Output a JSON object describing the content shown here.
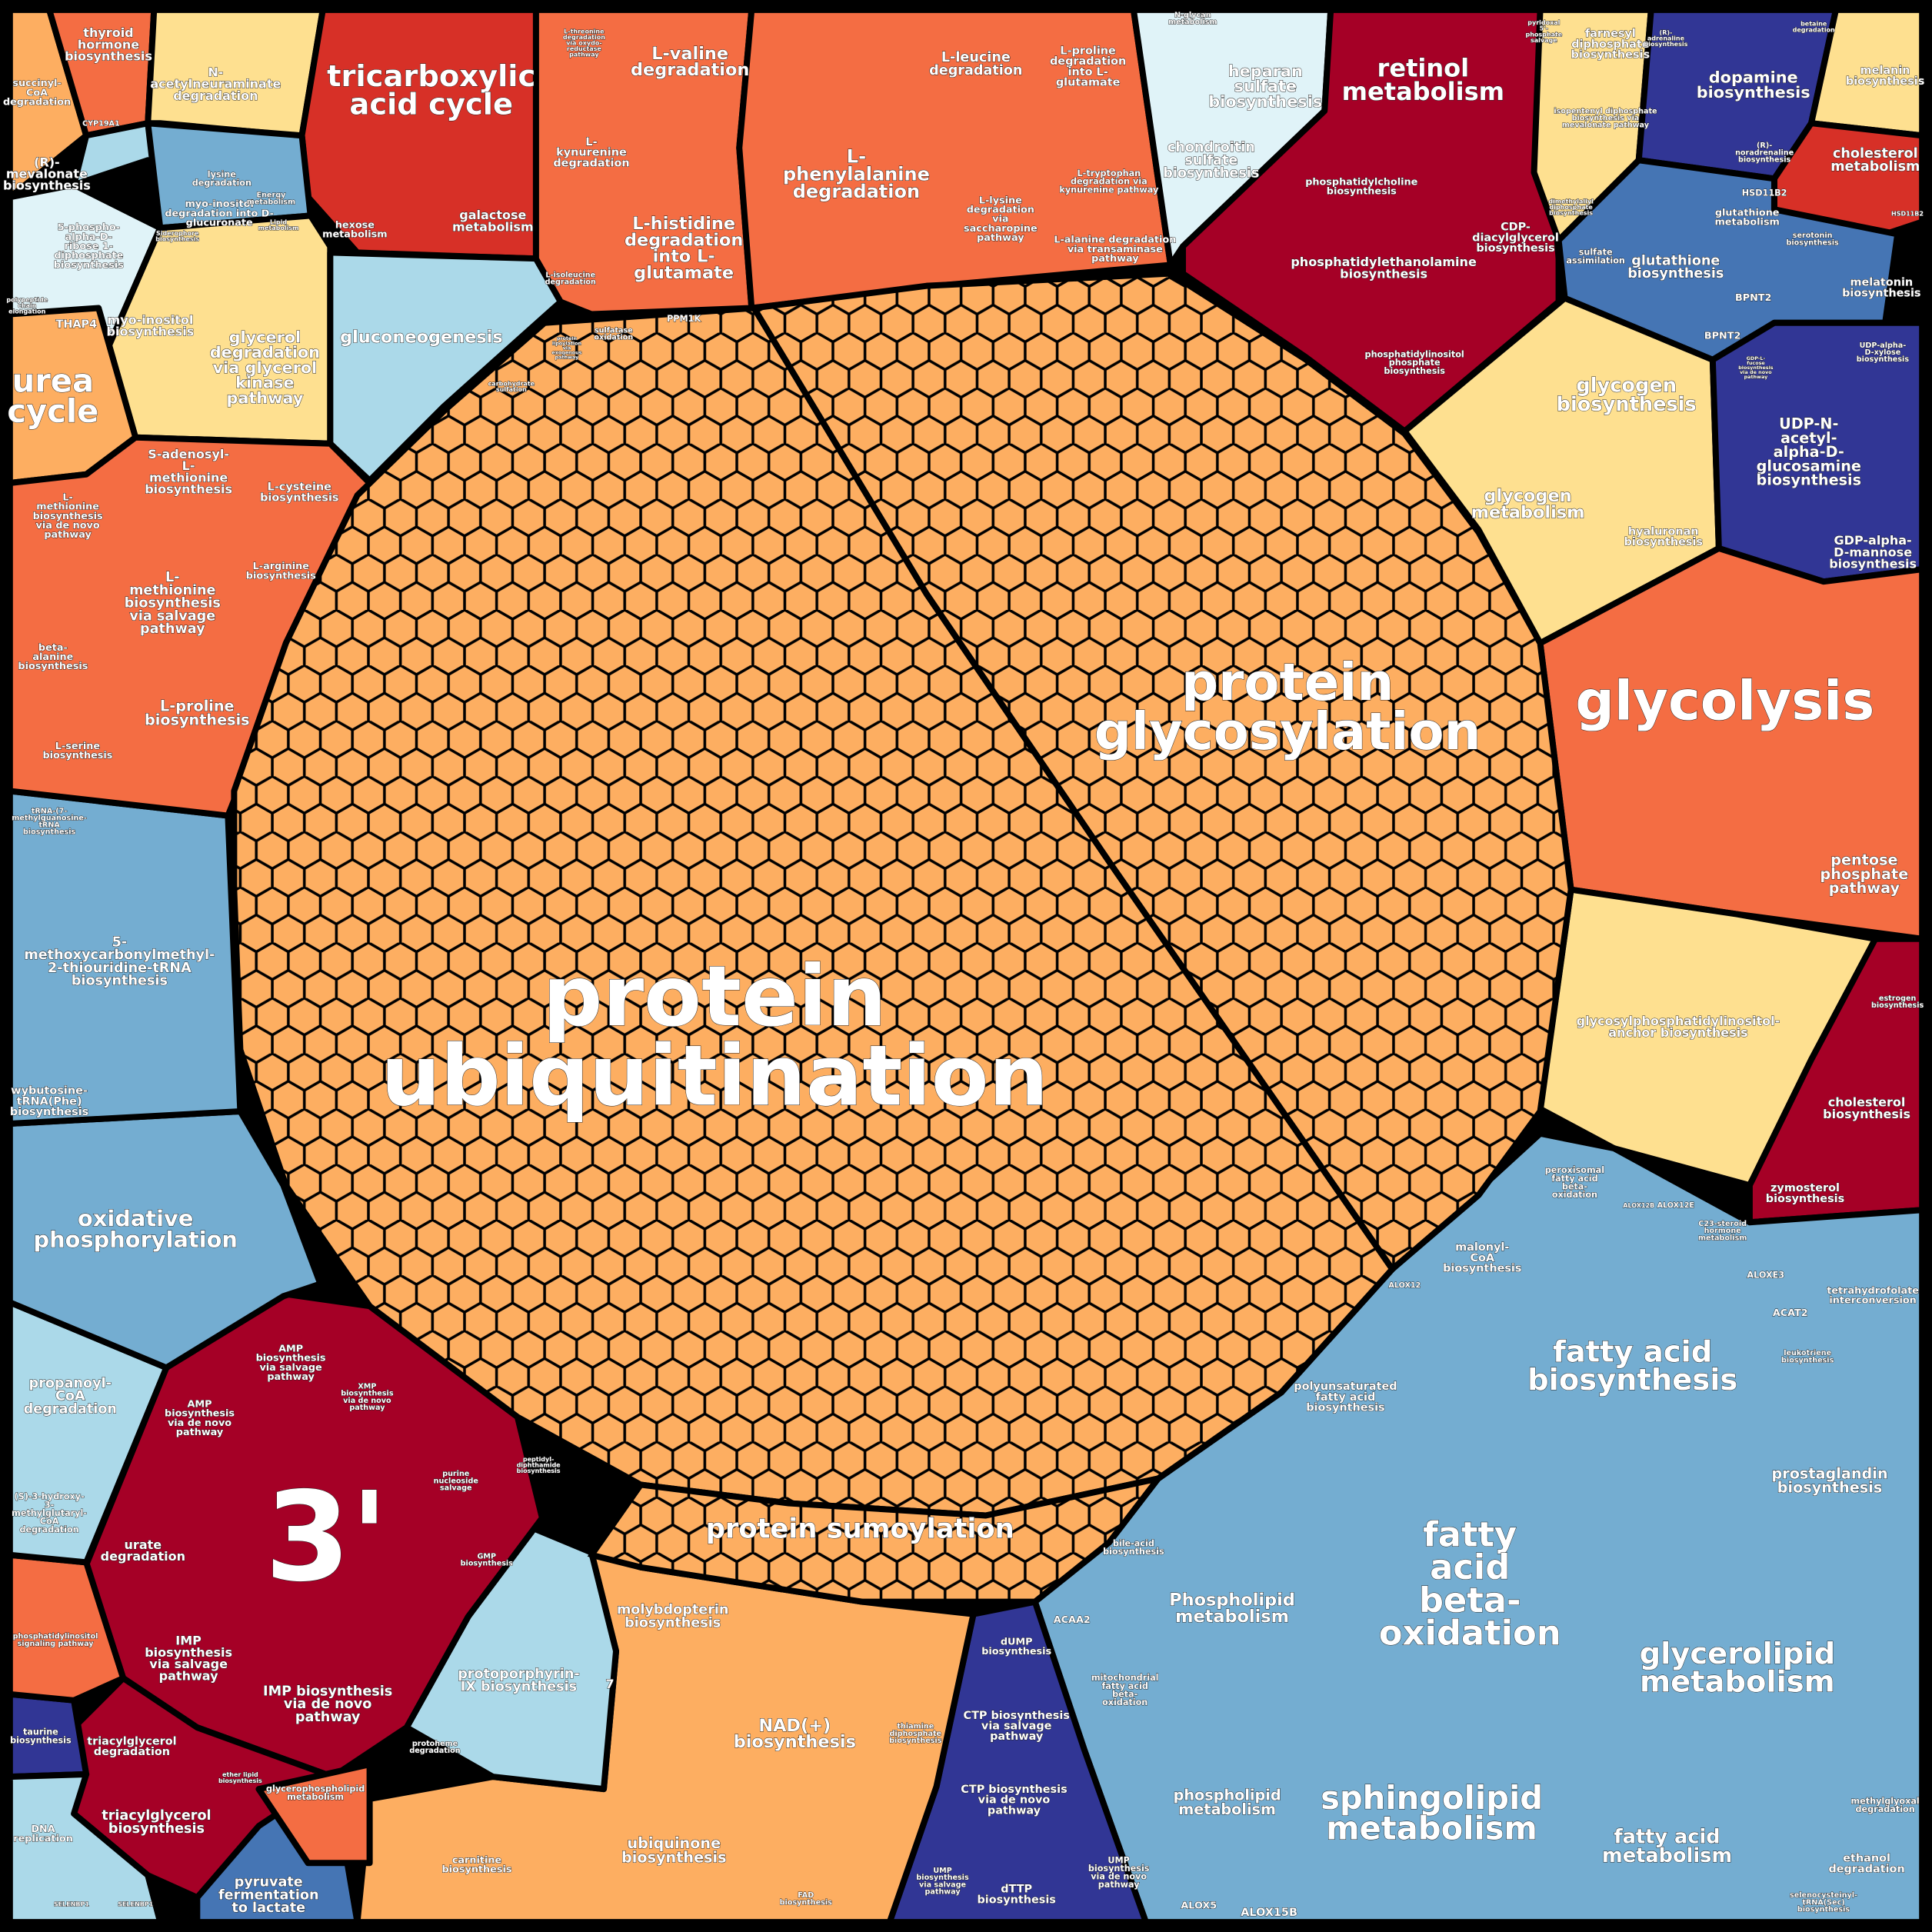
{
  "colors": {
    "orange_light": "#fdae61",
    "orange": "#f46d43",
    "red": "#d73027",
    "dark_red": "#a50026",
    "yellow": "#fee090",
    "pale_blue": "#e0f3f8",
    "light_blue": "#abd9e9",
    "mid_blue": "#74add1",
    "blue": "#4575b4",
    "navy": "#313695",
    "border": "#000000"
  },
  "labels": {
    "protein_ubiquitination": [
      "protein",
      "ubiquitination"
    ],
    "protein_glycosylation": [
      "protein",
      "glycosylation"
    ],
    "glycolysis": [
      "glycolysis"
    ],
    "three_prime": [
      "3'"
    ],
    "tca": [
      "tricarboxylic",
      "acid cycle"
    ],
    "retinol": [
      "retinol",
      "metabolism"
    ],
    "urea": [
      "urea",
      "cycle"
    ],
    "fatty_beta": [
      "fatty",
      "acid",
      "beta-",
      "oxidation"
    ],
    "fatty_bio": [
      "fatty acid",
      "biosynthesis"
    ],
    "glycerolipid": [
      "glycerolipid",
      "metabolism"
    ],
    "sphingolipid": [
      "sphingolipid",
      "metabolism"
    ],
    "protein_sumoylation": [
      "protein sumoylation"
    ],
    "oxidative": [
      "oxidative",
      "phosphorylation"
    ],
    "gluconeogenesis": [
      "gluconeogenesis"
    ],
    "glycogen_bio": [
      "glycogen",
      "biosynthesis"
    ],
    "glycogen_met": [
      "glycogen",
      "metabolism"
    ],
    "l_valine": [
      "L-valine",
      "degradation"
    ],
    "l_phenylalanine": [
      "L-",
      "phenylalanine",
      "degradation"
    ],
    "l_histidine": [
      "L-histidine",
      "degradation",
      "into L-",
      "glutamate"
    ],
    "l_leucine": [
      "L-leucine",
      "degradation"
    ],
    "l_proline_deg": [
      "L-proline",
      "degradation",
      "into L-",
      "glutamate"
    ],
    "l_kynurenine": [
      "L-",
      "kynurenine",
      "degradation"
    ],
    "l_tryptophan": [
      "L-tryptophan",
      "degradation via",
      "kynurenine pathway"
    ],
    "l_lysine": [
      "L-lysine",
      "degradation",
      "via",
      "saccharopine",
      "pathway"
    ],
    "l_alanine": [
      "L-alanine degradation",
      "via transaminase",
      "pathway"
    ],
    "l_isoleucine": [
      "L-isoleucine",
      "degradation"
    ],
    "l_threonine": [
      "L-threonine",
      "degradation",
      "via oxydo-",
      "reductase",
      "pathway"
    ],
    "thyroid": [
      "thyroid",
      "hormone",
      "biosynthesis"
    ],
    "succinyl": [
      "succinyl-",
      "CoA",
      "degradation"
    ],
    "n_acetylneuraminate": [
      "N-",
      "acetylneuraminate",
      "degradation"
    ],
    "mevalonate": [
      "(R)-",
      "mevalonate",
      "biosynthesis"
    ],
    "phospho_ribose": [
      "5-phospho-",
      "alpha-D-",
      "ribose 1-",
      "diphosphate",
      "biosynthesis"
    ],
    "polypeptide": [
      "polypeptide",
      "chain",
      "elongation"
    ],
    "myo_inositol_deg": [
      "myo-inositol",
      "degradation into D-",
      "glucuronate"
    ],
    "myo_inositol_bio": [
      "myo-inositol",
      "biosynthesis"
    ],
    "glycerol_deg": [
      "glycerol",
      "degradation",
      "via glycerol",
      "kinase",
      "pathway"
    ],
    "hexose": [
      "hexose",
      "metabolism"
    ],
    "galactose": [
      "galactose",
      "metabolism"
    ],
    "siderophore": [
      "Siderophore",
      "biosynthesis"
    ],
    "lysine_deg": [
      "lysine",
      "degradation"
    ],
    "lipid_met": [
      "Lipid",
      "metabolism"
    ],
    "energy": [
      "Energy",
      "metabolism"
    ],
    "thap4": [
      "THAP4"
    ],
    "cyp19a1": [
      "CYP19A1"
    ],
    "heparan": [
      "heparan",
      "sulfate",
      "biosynthesis"
    ],
    "chondroitin": [
      "chondroitin",
      "sulfate",
      "biosynthesis"
    ],
    "n_glycan": [
      "N-glycan",
      "metabolism"
    ],
    "pyridoxal": [
      "pyridoxal",
      "5'-",
      "phosphate",
      "salvage"
    ],
    "farnesyl": [
      "farnesyl",
      "diphosphate",
      "biosynthesis"
    ],
    "isopentenyl": [
      "isopentenyl diphosphate",
      "biosynthesis via",
      "mevalonate pathway"
    ],
    "dimethylallyl": [
      "dimethylallyl",
      "diphosphate",
      "biosynthesis"
    ],
    "dopamine": [
      "dopamine",
      "biosynthesis"
    ],
    "adrenaline": [
      "(R)-",
      "adrenaline",
      "biosynthesis"
    ],
    "betaine": [
      "betaine",
      "degradation"
    ],
    "melanin": [
      "melanin",
      "biosynthesis"
    ],
    "cholesterol_met": [
      "cholesterol",
      "metabolism"
    ],
    "hsd11b2_a": [
      "HSD11B2"
    ],
    "hsd11b2_b": [
      "HSD11B2"
    ],
    "noradrenaline": [
      "(R)-",
      "noradrenaline",
      "biosynthesis"
    ],
    "glutathione_bio": [
      "glutathione",
      "biosynthesis"
    ],
    "glutathione_met": [
      "glutathione",
      "metabolism"
    ],
    "sulfate_assim": [
      "sulfate",
      "assimilation"
    ],
    "serotonin": [
      "serotonin",
      "biosynthesis"
    ],
    "melatonin": [
      "melatonin",
      "biosynthesis"
    ],
    "bpnt2_a": [
      "BPNT2"
    ],
    "bpnt2_b": [
      "BPNT2"
    ],
    "phosphatidylcholine": [
      "phosphatidylcholine",
      "biosynthesis"
    ],
    "phosphatidylethanolamine": [
      "phosphatidylethanolamine",
      "biosynthesis"
    ],
    "cdp": [
      "CDP-",
      "diacylglycerol",
      "biosynthesis"
    ],
    "phosphatidylinositol_phos": [
      "phosphatidylinositol",
      "phosphate",
      "biosynthesis"
    ],
    "udp_n": [
      "UDP-N-",
      "acetyl-",
      "alpha-D-",
      "glucosamine",
      "biosynthesis"
    ],
    "gdp_fucose": [
      "GDP-L-",
      "fucose",
      "biosynthesis",
      "via de novo",
      "pathway"
    ],
    "udp_xylose": [
      "UDP-alpha-",
      "D-xylose",
      "biosynthesis"
    ],
    "gdp_mannose": [
      "GDP-alpha-",
      "D-mannose",
      "biosynthesis"
    ],
    "hyaluronan": [
      "hyaluronan",
      "biosynthesis"
    ],
    "pentose": [
      "pentose",
      "phosphate",
      "pathway"
    ],
    "gpi": [
      "glycosylphosphatidylinositol-",
      "anchor biosynthesis"
    ],
    "estrogen": [
      "estrogen",
      "biosynthesis"
    ],
    "cholesterol_bio": [
      "cholesterol",
      "biosynthesis"
    ],
    "zymosterol": [
      "zymosterol",
      "biosynthesis"
    ],
    "peroxisomal": [
      "peroxisomal",
      "fatty acid",
      "beta-",
      "oxidation"
    ],
    "malonyl": [
      "malonyl-",
      "CoA",
      "biosynthesis"
    ],
    "c23": [
      "C23-steroid",
      "hormone",
      "metabolism"
    ],
    "alox12b": [
      "ALOX12B"
    ],
    "alox12e": [
      "ALOX12E"
    ],
    "aloxe3": [
      "ALOXE3"
    ],
    "acat2": [
      "ACAT2"
    ],
    "alox12": [
      "ALOX12"
    ],
    "tetrahydrofolate": [
      "tetrahydrofolate",
      "interconversion"
    ],
    "leukotriene": [
      "leukotriene",
      "biosynthesis"
    ],
    "polyunsaturated": [
      "polyunsaturated",
      "fatty acid",
      "biosynthesis"
    ],
    "prostaglandin": [
      "prostaglandin",
      "biosynthesis"
    ],
    "phospholipid_met_a": [
      "Phospholipid",
      "metabolism"
    ],
    "phospholipid_met_b": [
      "phospholipid",
      "metabolism"
    ],
    "fatty_acid_met": [
      "fatty acid",
      "metabolism"
    ],
    "ethanol": [
      "ethanol",
      "degradation"
    ],
    "methylglyoxal": [
      "methylglyoxal",
      "degradation"
    ],
    "alox5": [
      "ALOX5"
    ],
    "alox15b": [
      "ALOX15B"
    ],
    "acaa2": [
      "ACAA2"
    ],
    "bile": [
      "bile-acid",
      "biosynthesis"
    ],
    "mitochondrial": [
      "mitochondrial",
      "fatty acid",
      "beta-",
      "oxidation"
    ],
    "selenocysteinyl": [
      "selenocysteinyl-",
      "tRNA(Sec)",
      "biosynthesis"
    ],
    "dump": [
      "dUMP",
      "biosynthesis"
    ],
    "ctp_salvage": [
      "CTP biosynthesis",
      "via salvage",
      "pathway"
    ],
    "ctp_denovo": [
      "CTP biosynthesis",
      "via de novo",
      "pathway"
    ],
    "ump_salvage": [
      "UMP",
      "biosynthesis",
      "via salvage",
      "pathway"
    ],
    "ump_denovo": [
      "UMP",
      "biosynthesis",
      "via de novo",
      "pathway"
    ],
    "dttp": [
      "dTTP",
      "biosynthesis"
    ],
    "molybdopterin": [
      "molybdopterin",
      "biosynthesis"
    ],
    "nad": [
      "NAD(+)",
      "biosynthesis"
    ],
    "ubiquinone": [
      "ubiquinone",
      "biosynthesis"
    ],
    "carnitine": [
      "carnitine",
      "biosynthesis"
    ],
    "protoporphyrin": [
      "protoporphyrin-",
      "IX biosynthesis"
    ],
    "protoheme": [
      "protoheme",
      "degradation"
    ],
    "seven": [
      "7"
    ],
    "thiamine": [
      "thiamine",
      "diphosphate",
      "biosynthesis"
    ],
    "fad": [
      "FAD",
      "biosynthesis"
    ],
    "amp_salvage": [
      "AMP",
      "biosynthesis",
      "via salvage",
      "pathway"
    ],
    "amp_denovo": [
      "AMP",
      "biosynthesis",
      "via de novo",
      "pathway"
    ],
    "xmp": [
      "XMP",
      "biosynthesis",
      "via de novo",
      "pathway"
    ],
    "purine_salvage": [
      "purine",
      "nucleoside",
      "salvage"
    ],
    "gmp": [
      "GMP",
      "biosynthesis"
    ],
    "urate": [
      "urate",
      "degradation"
    ],
    "imp_salvage": [
      "IMP",
      "biosynthesis",
      "via salvage",
      "pathway"
    ],
    "imp_denovo": [
      "IMP biosynthesis",
      "via de novo",
      "pathway"
    ],
    "tag_deg": [
      "triacylglycerol",
      "degradation"
    ],
    "tag_bio": [
      "triacylglycerol",
      "biosynthesis"
    ],
    "ether_lipid": [
      "ether lipid",
      "biosynthesis"
    ],
    "glycerophospholipid": [
      "glycerophospholipid",
      "metabolism"
    ],
    "pyruvate": [
      "pyruvate",
      "fermentation",
      "to lactate"
    ],
    "taurine": [
      "taurine",
      "biosynthesis"
    ],
    "dna": [
      "DNA",
      "replication"
    ],
    "selenbp1_a": [
      "SELENBP1"
    ],
    "selenbp1_b": [
      "SELENBP1"
    ],
    "pi_signaling": [
      "phosphatidylinositol",
      "signaling pathway"
    ],
    "propanoyl": [
      "propanoyl-",
      "CoA",
      "degradation"
    ],
    "hmg_coa": [
      "(S)-3-hydroxy-",
      "3-",
      "methylglutaryl-",
      "CoA",
      "degradation"
    ],
    "methoxycarbonyl": [
      "5-",
      "methoxycarbonylmethyl-",
      "2-thiouridine-tRNA",
      "biosynthesis"
    ],
    "wybutosine": [
      "wybutosine-",
      "tRNA(Phe)",
      "biosynthesis"
    ],
    "methylguanosine": [
      "tRNA-(7-",
      "methylguanosine-",
      "tRNA",
      "biosynthesis"
    ],
    "s_adenosyl": [
      "S-adenosyl-",
      "L-",
      "methionine",
      "biosynthesis"
    ],
    "l_cysteine": [
      "L-cysteine",
      "biosynthesis"
    ],
    "l_methionine_denovo": [
      "L-",
      "methionine",
      "biosynthesis",
      "via de novo",
      "pathway"
    ],
    "l_methionine_salvage": [
      "L-",
      "methionine",
      "biosynthesis",
      "via salvage",
      "pathway"
    ],
    "l_arginine": [
      "L-arginine",
      "biosynthesis"
    ],
    "beta_alanine": [
      "beta-",
      "alanine",
      "biosynthesis"
    ],
    "l_proline_bio": [
      "L-proline",
      "biosynthesis"
    ],
    "l_serine": [
      "L-serine",
      "biosynthesis"
    ],
    "sulfatase": [
      "sulfatase",
      "oxidation"
    ],
    "ppm1k": [
      "PPM1K"
    ],
    "carbohydrate_sulfation": [
      "carbohydrate",
      "sulfation"
    ],
    "protein_lipoylation": [
      "protein",
      "lipoylation",
      "via",
      "exogenous",
      "pathway"
    ],
    "peptidyl": [
      "peptidyl-",
      "diphthamide",
      "biosynthesis"
    ]
  }
}
